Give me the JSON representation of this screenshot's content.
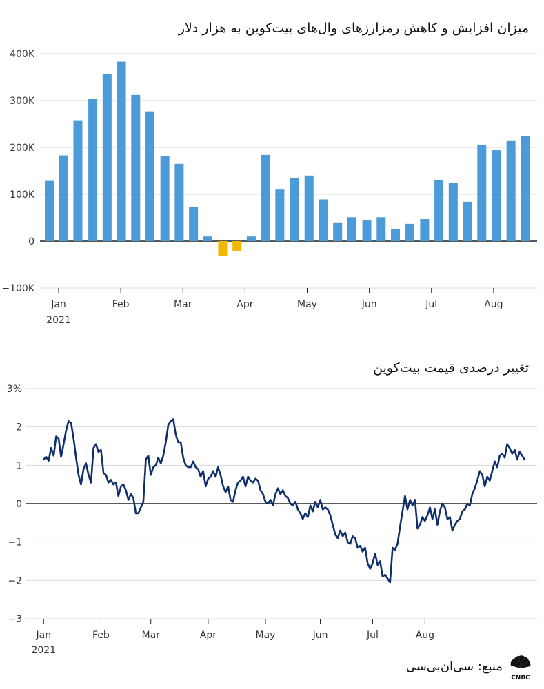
{
  "page": {
    "title_top": "میزان افزایش  و کاهش رمزارزهای وال‌های بیت‌کوین به هزار دلار",
    "title_bottom": "تغییر درصدی قیمت بیت‌کوین",
    "source": "منبع: سی‌ان‌بی‌سی",
    "logo_name": "CNBC"
  },
  "colors": {
    "positive_bar": "#4a9bd8",
    "negative_bar": "#f2b800",
    "line": "#0e2f6b",
    "grid": "#d9d9d9",
    "zero": "#222222",
    "text": "#333333"
  },
  "chart_data": [
    {
      "type": "bar",
      "title": "میزان افزایش  و کاهش رمزارزهای وال‌های بیت‌کوین به هزار دلار",
      "x": [
        0.15,
        0.38,
        0.61,
        0.85,
        1.08,
        1.31,
        1.54,
        1.77,
        2.01,
        2.24,
        2.47,
        2.7,
        2.94,
        3.17,
        3.4,
        3.63,
        3.86,
        4.1,
        4.33,
        4.56,
        4.79,
        5.02,
        5.26,
        5.49,
        5.72,
        5.95,
        6.19,
        6.42,
        6.65,
        6.88,
        7.11,
        7.35,
        7.58,
        7.81
      ],
      "values": [
        130,
        183,
        258,
        303,
        356,
        383,
        312,
        277,
        182,
        165,
        73,
        10,
        -32,
        -22,
        10,
        184,
        110,
        135,
        140,
        89,
        40,
        51,
        44,
        51,
        26,
        37,
        47,
        131,
        125,
        84,
        206,
        194,
        215,
        225
      ],
      "yticks": [
        -100,
        0,
        100,
        200,
        300,
        400
      ],
      "ytick_labels": [
        "−100K",
        "0",
        "100K",
        "200K",
        "300K",
        "400K"
      ],
      "ylim": [
        -100,
        400
      ],
      "xlim": [
        0,
        8
      ],
      "xticks": [
        0,
        1,
        2,
        3,
        4,
        5,
        6,
        7
      ],
      "xtick_labels": [
        "Jan",
        "Feb",
        "Mar",
        "Apr",
        "May",
        "Jun",
        "Jul",
        "Aug"
      ],
      "year_label": "2021"
    },
    {
      "type": "line",
      "title": "تغییر درصدی قیمت بیت‌کوین",
      "points": [
        [
          0.0,
          1.15
        ],
        [
          0.05,
          1.22
        ],
        [
          0.1,
          1.12
        ],
        [
          0.15,
          1.45
        ],
        [
          0.2,
          1.25
        ],
        [
          0.25,
          1.75
        ],
        [
          0.3,
          1.7
        ],
        [
          0.35,
          1.22
        ],
        [
          0.4,
          1.55
        ],
        [
          0.45,
          1.9
        ],
        [
          0.5,
          2.15
        ],
        [
          0.55,
          2.1
        ],
        [
          0.6,
          1.7
        ],
        [
          0.65,
          1.2
        ],
        [
          0.7,
          0.75
        ],
        [
          0.75,
          0.5
        ],
        [
          0.8,
          0.9
        ],
        [
          0.85,
          1.05
        ],
        [
          0.9,
          0.75
        ],
        [
          0.95,
          0.55
        ],
        [
          1.0,
          1.45
        ],
        [
          1.05,
          1.55
        ],
        [
          1.1,
          1.35
        ],
        [
          1.15,
          1.4
        ],
        [
          1.2,
          0.8
        ],
        [
          1.25,
          0.75
        ],
        [
          1.3,
          0.55
        ],
        [
          1.35,
          0.62
        ],
        [
          1.4,
          0.5
        ],
        [
          1.45,
          0.55
        ],
        [
          1.5,
          0.2
        ],
        [
          1.55,
          0.45
        ],
        [
          1.6,
          0.5
        ],
        [
          1.65,
          0.35
        ],
        [
          1.7,
          0.1
        ],
        [
          1.75,
          0.25
        ],
        [
          1.8,
          0.15
        ],
        [
          1.85,
          -0.25
        ],
        [
          1.9,
          -0.25
        ],
        [
          1.95,
          -0.1
        ],
        [
          2.0,
          0.05
        ],
        [
          2.05,
          1.15
        ],
        [
          2.1,
          1.25
        ],
        [
          2.15,
          0.75
        ],
        [
          2.2,
          0.95
        ],
        [
          2.25,
          1.0
        ],
        [
          2.3,
          1.2
        ],
        [
          2.35,
          1.05
        ],
        [
          2.4,
          1.25
        ],
        [
          2.45,
          1.6
        ],
        [
          2.5,
          2.05
        ],
        [
          2.55,
          2.15
        ],
        [
          2.6,
          2.2
        ],
        [
          2.65,
          1.8
        ],
        [
          2.7,
          1.6
        ],
        [
          2.75,
          1.6
        ],
        [
          2.8,
          1.2
        ],
        [
          2.85,
          1.0
        ],
        [
          2.9,
          0.95
        ],
        [
          2.95,
          0.95
        ],
        [
          3.0,
          1.1
        ],
        [
          3.05,
          0.95
        ],
        [
          3.1,
          0.9
        ],
        [
          3.15,
          0.7
        ],
        [
          3.2,
          0.85
        ],
        [
          3.25,
          0.45
        ],
        [
          3.3,
          0.65
        ],
        [
          3.35,
          0.7
        ],
        [
          3.4,
          0.85
        ],
        [
          3.45,
          0.7
        ],
        [
          3.5,
          0.95
        ],
        [
          3.55,
          0.75
        ],
        [
          3.6,
          0.45
        ],
        [
          3.65,
          0.3
        ],
        [
          3.7,
          0.45
        ],
        [
          3.75,
          0.1
        ],
        [
          3.8,
          0.05
        ],
        [
          3.85,
          0.35
        ],
        [
          3.9,
          0.55
        ],
        [
          3.95,
          0.6
        ],
        [
          4.0,
          0.7
        ],
        [
          4.05,
          0.45
        ],
        [
          4.1,
          0.7
        ],
        [
          4.15,
          0.6
        ],
        [
          4.2,
          0.55
        ],
        [
          4.25,
          0.65
        ],
        [
          4.3,
          0.6
        ],
        [
          4.35,
          0.35
        ],
        [
          4.4,
          0.25
        ],
        [
          4.45,
          0.05
        ],
        [
          4.5,
          0.0
        ],
        [
          4.55,
          0.1
        ],
        [
          4.6,
          -0.05
        ],
        [
          4.65,
          0.25
        ],
        [
          4.7,
          0.4
        ],
        [
          4.75,
          0.25
        ],
        [
          4.8,
          0.35
        ],
        [
          4.85,
          0.2
        ],
        [
          4.9,
          0.15
        ],
        [
          4.95,
          0.0
        ],
        [
          5.0,
          -0.05
        ],
        [
          5.05,
          0.05
        ],
        [
          5.1,
          -0.15
        ],
        [
          5.15,
          -0.25
        ],
        [
          5.2,
          -0.4
        ],
        [
          5.25,
          -0.25
        ],
        [
          5.3,
          -0.35
        ],
        [
          5.35,
          -0.05
        ],
        [
          5.4,
          -0.2
        ],
        [
          5.45,
          0.05
        ],
        [
          5.5,
          -0.1
        ],
        [
          5.55,
          0.1
        ],
        [
          5.6,
          -0.15
        ],
        [
          5.65,
          -0.1
        ],
        [
          5.7,
          -0.15
        ],
        [
          5.75,
          -0.3
        ],
        [
          5.8,
          -0.55
        ],
        [
          5.85,
          -0.8
        ],
        [
          5.9,
          -0.9
        ],
        [
          5.95,
          -0.7
        ],
        [
          6.0,
          -0.85
        ],
        [
          6.05,
          -0.75
        ],
        [
          6.1,
          -1.0
        ],
        [
          6.15,
          -1.05
        ],
        [
          6.2,
          -0.85
        ],
        [
          6.25,
          -0.9
        ],
        [
          6.3,
          -1.15
        ],
        [
          6.35,
          -1.1
        ],
        [
          6.4,
          -1.25
        ],
        [
          6.45,
          -1.15
        ],
        [
          6.5,
          -1.55
        ],
        [
          6.55,
          -1.7
        ],
        [
          6.6,
          -1.55
        ],
        [
          6.65,
          -1.3
        ],
        [
          6.7,
          -1.6
        ],
        [
          6.75,
          -1.5
        ],
        [
          6.8,
          -1.9
        ],
        [
          6.85,
          -1.85
        ],
        [
          6.9,
          -1.95
        ],
        [
          6.95,
          -2.05
        ],
        [
          7.0,
          -1.15
        ],
        [
          7.05,
          -1.2
        ],
        [
          7.1,
          -1.05
        ],
        [
          7.15,
          -0.6
        ],
        [
          7.2,
          -0.2
        ],
        [
          7.25,
          0.2
        ],
        [
          7.3,
          -0.15
        ],
        [
          7.35,
          0.1
        ],
        [
          7.4,
          -0.05
        ],
        [
          7.45,
          0.1
        ],
        [
          7.5,
          -0.65
        ],
        [
          7.55,
          -0.55
        ],
        [
          7.6,
          -0.35
        ],
        [
          7.65,
          -0.45
        ],
        [
          7.7,
          -0.3
        ],
        [
          7.75,
          -0.1
        ],
        [
          7.8,
          -0.4
        ],
        [
          7.85,
          -0.15
        ],
        [
          7.9,
          -0.55
        ],
        [
          7.95,
          -0.2
        ],
        [
          8.0,
          0.0
        ],
        [
          8.05,
          -0.1
        ],
        [
          8.1,
          -0.4
        ],
        [
          8.15,
          -0.35
        ],
        [
          8.2,
          -0.7
        ],
        [
          8.25,
          -0.55
        ],
        [
          8.3,
          -0.45
        ],
        [
          8.35,
          -0.4
        ],
        [
          8.4,
          -0.2
        ],
        [
          8.45,
          -0.15
        ],
        [
          8.5,
          0.0
        ],
        [
          8.55,
          -0.05
        ],
        [
          8.6,
          0.25
        ],
        [
          8.65,
          0.4
        ],
        [
          8.7,
          0.6
        ],
        [
          8.75,
          0.85
        ],
        [
          8.8,
          0.75
        ],
        [
          8.85,
          0.45
        ],
        [
          8.9,
          0.7
        ],
        [
          8.95,
          0.6
        ],
        [
          9.0,
          0.85
        ],
        [
          9.05,
          1.1
        ],
        [
          9.1,
          0.95
        ],
        [
          9.15,
          1.25
        ],
        [
          9.2,
          1.3
        ],
        [
          9.25,
          1.2
        ],
        [
          9.3,
          1.55
        ],
        [
          9.35,
          1.45
        ],
        [
          9.4,
          1.3
        ],
        [
          9.45,
          1.4
        ],
        [
          9.5,
          1.15
        ],
        [
          9.55,
          1.35
        ],
        [
          9.6,
          1.25
        ],
        [
          9.65,
          1.15
        ]
      ],
      "yticks": [
        -3,
        -2,
        -1,
        0,
        1,
        2,
        3
      ],
      "ytick_labels": [
        "−3",
        "−2",
        "−1",
        "0",
        "1",
        "2",
        "3%"
      ],
      "ylim": [
        -3,
        3
      ],
      "xlim": [
        -0.35,
        9.9
      ],
      "xticks": [
        0,
        1.15,
        2.15,
        3.3,
        4.45,
        5.55,
        6.6,
        7.65
      ],
      "xtick_labels": [
        "Jan",
        "Feb",
        "Mar",
        "Apr",
        "May",
        "Jun",
        "Jul",
        "Aug"
      ],
      "year_label": "2021"
    }
  ]
}
